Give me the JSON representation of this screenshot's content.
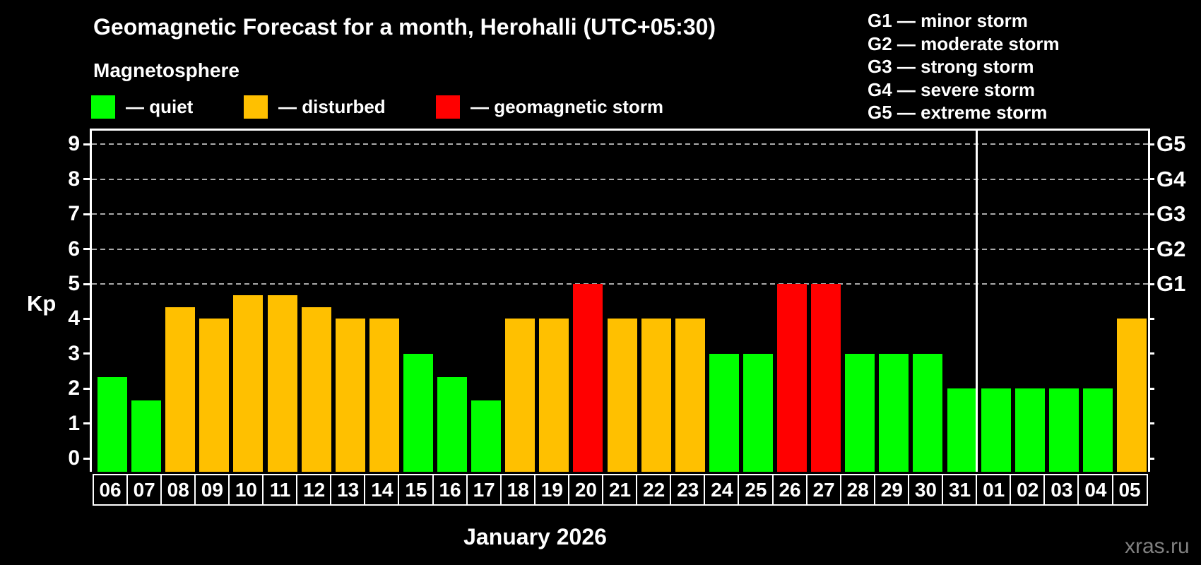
{
  "title": "Geomagnetic Forecast for a month, Herohalli (UTC+05:30)",
  "subtitle": "Magnetosphere",
  "watermark": "xras.ru",
  "legend": {
    "items": [
      {
        "key": "quiet",
        "label": "— quiet",
        "color": "#00ff00"
      },
      {
        "key": "disturbed",
        "label": "— disturbed",
        "color": "#ffc000"
      },
      {
        "key": "storm",
        "label": "— geomagnetic storm",
        "color": "#ff0000"
      }
    ]
  },
  "g_legend": [
    "G1 — minor storm",
    "G2 — moderate storm",
    "G3 — strong storm",
    "G4 — severe storm",
    "G5 — extreme storm"
  ],
  "chart_data": {
    "type": "bar",
    "title": "Geomagnetic Forecast for a month, Herohalli (UTC+05:30)",
    "ylabel": "Kp",
    "xlabel": "January 2026",
    "month_label": "January 2026",
    "ylim": [
      0,
      9.4
    ],
    "yticks": [
      0,
      1,
      2,
      3,
      4,
      5,
      6,
      7,
      8,
      9
    ],
    "grid": "dashed horizontal at Kp 5-9",
    "gridlines_at": [
      5,
      6,
      7,
      8,
      9
    ],
    "right_axis": [
      {
        "label": "G1",
        "kp": 5
      },
      {
        "label": "G2",
        "kp": 6
      },
      {
        "label": "G3",
        "kp": 7
      },
      {
        "label": "G4",
        "kp": 8
      },
      {
        "label": "G5",
        "kp": 9
      }
    ],
    "colors": {
      "quiet": "#00ff00",
      "disturbed": "#ffc000",
      "storm": "#ff0000"
    },
    "month_separator_after_index": 25,
    "categories": [
      "06",
      "07",
      "08",
      "09",
      "10",
      "11",
      "12",
      "13",
      "14",
      "15",
      "16",
      "17",
      "18",
      "19",
      "20",
      "21",
      "22",
      "23",
      "24",
      "25",
      "26",
      "27",
      "28",
      "29",
      "30",
      "31",
      "01",
      "02",
      "03",
      "04",
      "05"
    ],
    "values": [
      2.33,
      1.67,
      4.33,
      4,
      4.67,
      4.67,
      4.33,
      4,
      4,
      3,
      2.33,
      1.67,
      4,
      4,
      5,
      4,
      4,
      4,
      3,
      3,
      5,
      5,
      3,
      3,
      3,
      2,
      2,
      2,
      2,
      2,
      4
    ],
    "statuses": [
      "quiet",
      "quiet",
      "disturbed",
      "disturbed",
      "disturbed",
      "disturbed",
      "disturbed",
      "disturbed",
      "disturbed",
      "quiet",
      "quiet",
      "quiet",
      "disturbed",
      "disturbed",
      "storm",
      "disturbed",
      "disturbed",
      "disturbed",
      "quiet",
      "quiet",
      "storm",
      "storm",
      "quiet",
      "quiet",
      "quiet",
      "quiet",
      "quiet",
      "quiet",
      "quiet",
      "quiet",
      "disturbed"
    ]
  }
}
